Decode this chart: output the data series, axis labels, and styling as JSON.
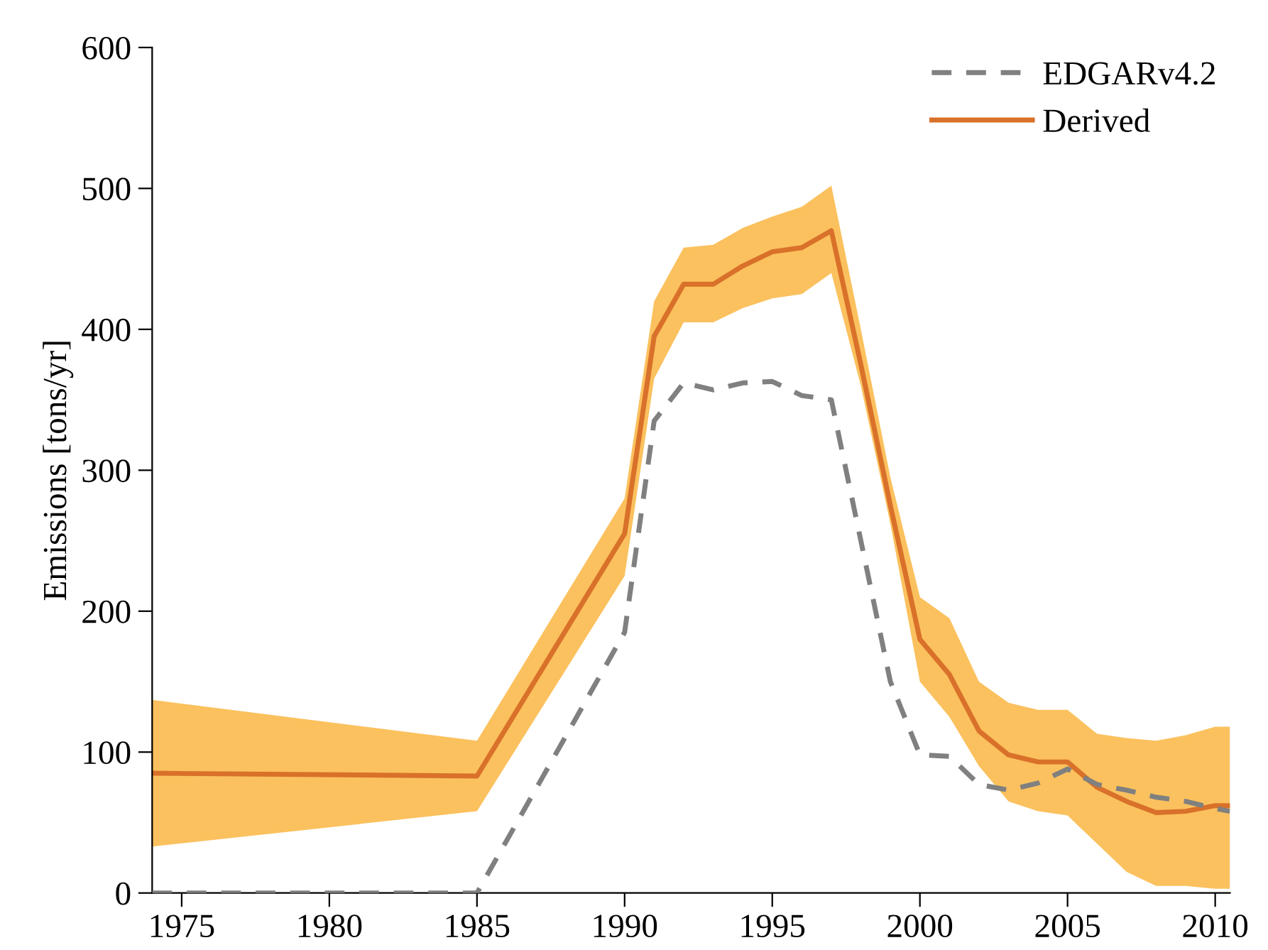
{
  "chart_data": {
    "type": "line",
    "ylabel": "Emissions [tons/yr]",
    "xlim": [
      1974,
      2010.5
    ],
    "xticks": [
      1975,
      1980,
      1985,
      1990,
      1995,
      2000,
      2005,
      2010
    ],
    "ylim": [
      0,
      600
    ],
    "yticks": [
      0,
      100,
      200,
      300,
      400,
      500,
      600
    ],
    "grid": false,
    "legend": "top right",
    "marker": "none",
    "series": [
      {
        "name": "EDGARv4.2",
        "color": "#808080",
        "line_style": "dashed",
        "x": [
          1974,
          1985,
          1990,
          1991,
          1992,
          1993,
          1994,
          1995,
          1996,
          1997,
          1998,
          1999,
          2000,
          2001,
          2002,
          2003,
          2004,
          2005,
          2006,
          2007,
          2008,
          2009,
          2010,
          2010.5
        ],
        "values": [
          0,
          0,
          185,
          335,
          362,
          357,
          362,
          363,
          353,
          350,
          250,
          150,
          98,
          97,
          77,
          73,
          78,
          88,
          77,
          73,
          68,
          65,
          60,
          58
        ]
      },
      {
        "name": "Derived",
        "color": "#d9712a",
        "line_style": "solid",
        "x": [
          1974,
          1985,
          1990,
          1991,
          1992,
          1993,
          1994,
          1995,
          1996,
          1997,
          1998,
          1999,
          2000,
          2001,
          2002,
          2003,
          2004,
          2005,
          2006,
          2007,
          2008,
          2009,
          2010,
          2010.5
        ],
        "values": [
          85,
          83,
          255,
          395,
          432,
          432,
          445,
          455,
          458,
          470,
          375,
          275,
          180,
          155,
          115,
          98,
          93,
          93,
          75,
          65,
          57,
          58,
          62,
          62
        ],
        "lower": [
          33,
          58,
          225,
          365,
          405,
          405,
          415,
          422,
          425,
          440,
          360,
          262,
          150,
          125,
          90,
          65,
          58,
          55,
          35,
          15,
          5,
          5,
          3,
          3
        ],
        "upper": [
          137,
          108,
          280,
          420,
          458,
          460,
          472,
          480,
          487,
          502,
          400,
          295,
          210,
          195,
          150,
          135,
          130,
          130,
          113,
          110,
          108,
          112,
          118,
          118
        ]
      }
    ]
  }
}
